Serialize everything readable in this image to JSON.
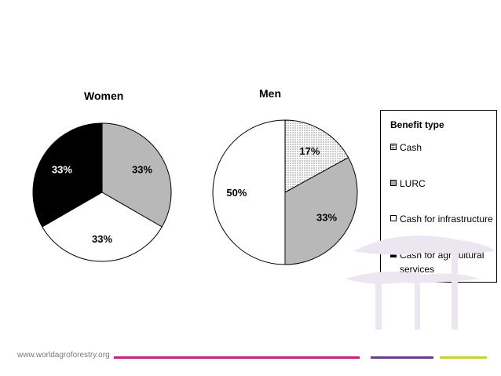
{
  "chart_data": [
    {
      "type": "pie",
      "title": "Women",
      "slices": [
        {
          "category": "LURC",
          "value": 33,
          "label": "33%"
        },
        {
          "category": "Cash for infrastructure",
          "value": 33,
          "label": "33%"
        },
        {
          "category": "Cash for agricultural services",
          "value": 33,
          "label": "33%"
        }
      ]
    },
    {
      "type": "pie",
      "title": "Men",
      "slices": [
        {
          "category": "Cash",
          "value": 17,
          "label": "17%"
        },
        {
          "category": "LURC",
          "value": 33,
          "label": "33%"
        },
        {
          "category": "Cash for infrastructure",
          "value": 50,
          "label": "50%"
        }
      ]
    }
  ],
  "legend": {
    "title": "Benefit type",
    "items": [
      {
        "key": "cash",
        "label": "Cash"
      },
      {
        "key": "lurc",
        "label": "LURC"
      },
      {
        "key": "infra",
        "label": "Cash for infrastructure"
      },
      {
        "key": "agri",
        "label": "Cash for agricultural services"
      }
    ]
  },
  "footer": {
    "url": "www.worldagroforestry.org",
    "line_colors": [
      "#c81e82",
      "#6a3a8c",
      "#c8d22a"
    ]
  },
  "colors": {
    "cash": "#ffffff",
    "lurc": "#c8c8c8",
    "infra": "#ffffff",
    "agri": "#000000",
    "watermark": "#e8e0ee"
  }
}
